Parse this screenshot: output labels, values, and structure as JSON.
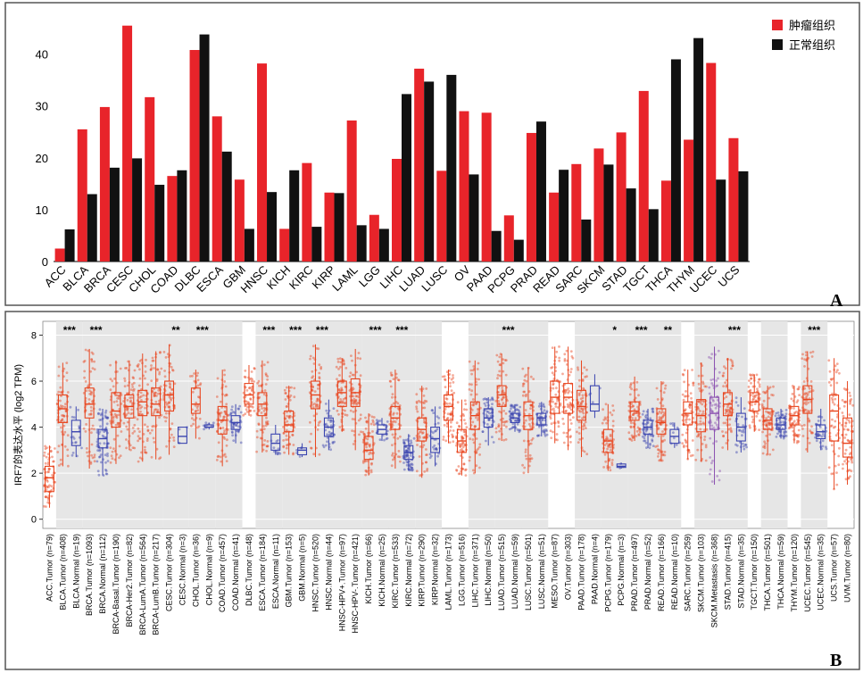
{
  "panels": {
    "a_letter": "A",
    "b_letter": "B"
  },
  "colors": {
    "tumor": "#e8242a",
    "normal": "#111111",
    "box_tumor": "#e8451e",
    "box_normal": "#3b45b0",
    "box_metastasis": "#8a4fb0",
    "panel_bg_stripe": "#e6e6e6",
    "frame": "#555555",
    "significance": "#000000"
  },
  "chart_data": [
    {
      "type": "bar",
      "legend_position": "top-right",
      "categories": [
        "ACC",
        "BLCA",
        "BRCA",
        "CESC",
        "CHOL",
        "COAD",
        "DLBC",
        "ESCA",
        "GBM",
        "HNSC",
        "KICH",
        "KIRC",
        "KIRP",
        "LAML",
        "LGG",
        "LIHC",
        "LUAD",
        "LUSC",
        "OV",
        "PAAD",
        "PCPG",
        "PRAD",
        "READ",
        "SARC",
        "SKCM",
        "STAD",
        "TGCT",
        "THCA",
        "THYM",
        "UCEC",
        "UCS"
      ],
      "series": [
        {
          "name": "肿瘤组织",
          "values": [
            2.5,
            25.5,
            29.8,
            45.5,
            31.7,
            16.5,
            40.8,
            28,
            15.8,
            38.2,
            6.3,
            19,
            13.3,
            27.2,
            9,
            19.8,
            37.2,
            17.5,
            29,
            28.7,
            8.9,
            24.8,
            13.3,
            18.8,
            21.8,
            24.9,
            32.9,
            15.6,
            23.5,
            38.3,
            23.8
          ]
        },
        {
          "name": "正常组织",
          "values": [
            6.2,
            13,
            18.1,
            19.9,
            14.8,
            17.6,
            43.8,
            21.2,
            6.3,
            13.4,
            17.6,
            6.7,
            13.2,
            7,
            6.3,
            32.3,
            34.7,
            36,
            16.8,
            5.9,
            4.2,
            27,
            17.7,
            8.1,
            18.7,
            14.1,
            10.1,
            39,
            43.1,
            15.8,
            17.4
          ]
        }
      ],
      "yticks": [
        0,
        10,
        20,
        30,
        40
      ],
      "ylim": [
        0,
        47
      ],
      "grid": false
    },
    {
      "type": "box",
      "ylabel": "IRF7的表达水平 (log2 TPM)",
      "yticks": [
        0,
        2,
        4,
        6,
        8
      ],
      "ylim": [
        -0.4,
        8.6
      ],
      "grid": true,
      "groups": [
        {
          "label": "ACC.Tumor (n=79)",
          "kind": "tumor",
          "stats": [
            0.5,
            1.2,
            1.8,
            2.3,
            3.2
          ]
        },
        {
          "label": "BLCA.Tumor (n=408)",
          "kind": "tumor",
          "stats": [
            2.3,
            4.2,
            4.8,
            5.4,
            6.8
          ]
        },
        {
          "label": "BLCA.Normal (n=19)",
          "kind": "normal",
          "stats": [
            2.7,
            3.2,
            3.8,
            4.3,
            4.9
          ]
        },
        {
          "label": "BRCA.Tumor (n=1093)",
          "kind": "tumor",
          "stats": [
            2.2,
            4.4,
            5.0,
            5.7,
            7.4
          ]
        },
        {
          "label": "BRCA.Normal (n=112)",
          "kind": "normal",
          "stats": [
            1.9,
            3.1,
            3.5,
            3.9,
            4.8
          ]
        },
        {
          "label": "BRCA-Basal.Tumor (n=190)",
          "kind": "tumor",
          "stats": [
            2.4,
            4.0,
            4.7,
            5.5,
            6.9
          ]
        },
        {
          "label": "BRCA-Her2.Tumor (n=82)",
          "kind": "tumor",
          "stats": [
            3.0,
            4.4,
            4.9,
            5.4,
            6.9
          ]
        },
        {
          "label": "BRCA-LumA.Tumor (n=564)",
          "kind": "tumor",
          "stats": [
            2.5,
            4.5,
            5.1,
            5.6,
            7.2
          ]
        },
        {
          "label": "BRCA-LumB.Tumor (n=217)",
          "kind": "tumor",
          "stats": [
            2.6,
            4.5,
            5.0,
            5.7,
            7.3
          ]
        },
        {
          "label": "CESC.Tumor (n=304)",
          "kind": "tumor",
          "stats": [
            2.8,
            4.7,
            5.4,
            6.0,
            7.6
          ]
        },
        {
          "label": "CESC.Normal (n=3)",
          "kind": "normal",
          "stats": [
            3.3,
            3.3,
            3.6,
            4.0,
            4.0
          ]
        },
        {
          "label": "CHOL.Tumor (n=36)",
          "kind": "tumor",
          "stats": [
            3.5,
            4.6,
            5.0,
            5.7,
            6.5
          ]
        },
        {
          "label": "CHOL.Normal (n=9)",
          "kind": "normal",
          "stats": [
            3.9,
            4.0,
            4.0,
            4.1,
            4.2
          ]
        },
        {
          "label": "COAD.Tumor (n=457)",
          "kind": "tumor",
          "stats": [
            2.3,
            3.7,
            4.3,
            4.9,
            6.5
          ]
        },
        {
          "label": "COAD.Normal (n=41)",
          "kind": "normal",
          "stats": [
            3.3,
            3.9,
            4.2,
            4.5,
            5.0
          ]
        },
        {
          "label": "DLBC.Tumor (n=48)",
          "kind": "tumor",
          "stats": [
            4.5,
            5.0,
            5.4,
            5.9,
            6.7
          ]
        },
        {
          "label": "ESCA.Tumor (n=184)",
          "kind": "tumor",
          "stats": [
            2.9,
            4.5,
            5.0,
            5.5,
            6.9
          ]
        },
        {
          "label": "ESCA.Normal (n=11)",
          "kind": "normal",
          "stats": [
            2.8,
            3.0,
            3.3,
            3.7,
            4.1
          ]
        },
        {
          "label": "GBM.Tumor (n=153)",
          "kind": "tumor",
          "stats": [
            2.8,
            3.8,
            4.1,
            4.7,
            5.8
          ]
        },
        {
          "label": "GBM.Normal (n=5)",
          "kind": "normal",
          "stats": [
            2.7,
            2.8,
            3.0,
            3.1,
            3.3
          ]
        },
        {
          "label": "HNSC.Tumor (n=520)",
          "kind": "tumor",
          "stats": [
            2.7,
            4.8,
            5.4,
            6.0,
            7.6
          ]
        },
        {
          "label": "HNSC.Normal (n=44)",
          "kind": "normal",
          "stats": [
            3.0,
            3.6,
            4.0,
            4.4,
            5.2
          ]
        },
        {
          "label": "HNSC-HPV+.Tumor (n=97)",
          "kind": "tumor",
          "stats": [
            3.8,
            4.9,
            5.5,
            6.0,
            7.0
          ]
        },
        {
          "label": "HNSC-HPV-.Tumor (n=421)",
          "kind": "tumor",
          "stats": [
            3.0,
            4.9,
            5.5,
            6.1,
            7.4
          ]
        },
        {
          "label": "KICH.Tumor (n=66)",
          "kind": "tumor",
          "stats": [
            1.9,
            2.6,
            3.0,
            3.6,
            4.6
          ]
        },
        {
          "label": "KICH.Normal (n=25)",
          "kind": "normal",
          "stats": [
            3.4,
            3.7,
            3.9,
            4.1,
            4.4
          ]
        },
        {
          "label": "KIRC.Tumor (n=533)",
          "kind": "tumor",
          "stats": [
            2.2,
            3.9,
            4.4,
            4.9,
            6.5
          ]
        },
        {
          "label": "KIRC.Normal (n=72)",
          "kind": "normal",
          "stats": [
            2.1,
            2.6,
            2.9,
            3.2,
            3.7
          ]
        },
        {
          "label": "KIRP.Tumor (n=290)",
          "kind": "tumor",
          "stats": [
            1.8,
            3.4,
            3.9,
            4.4,
            5.8
          ]
        },
        {
          "label": "KIRP.Normal (n=32)",
          "kind": "normal",
          "stats": [
            2.3,
            2.9,
            3.5,
            4.0,
            4.9
          ]
        },
        {
          "label": "LAML.Tumor (n=173)",
          "kind": "tumor",
          "stats": [
            3.3,
            4.3,
            4.9,
            5.4,
            6.5
          ]
        },
        {
          "label": "LGG.Tumor (n=516)",
          "kind": "tumor",
          "stats": [
            1.9,
            2.9,
            3.4,
            3.9,
            5.2
          ]
        },
        {
          "label": "LIHC.Tumor (n=371)",
          "kind": "tumor",
          "stats": [
            2.0,
            3.9,
            4.5,
            5.1,
            6.9
          ]
        },
        {
          "label": "LIHC.Normal (n=50)",
          "kind": "normal",
          "stats": [
            3.2,
            4.0,
            4.4,
            4.8,
            5.3
          ]
        },
        {
          "label": "LUAD.Tumor (n=515)",
          "kind": "tumor",
          "stats": [
            3.4,
            4.9,
            5.4,
            5.8,
            7.2
          ]
        },
        {
          "label": "LUAD.Normal (n=59)",
          "kind": "normal",
          "stats": [
            3.8,
            4.2,
            4.4,
            4.6,
            5.0
          ]
        },
        {
          "label": "LUSC.Tumor (n=501)",
          "kind": "tumor",
          "stats": [
            2.0,
            3.9,
            4.5,
            5.1,
            6.6
          ]
        },
        {
          "label": "LUSC.Normal (n=51)",
          "kind": "normal",
          "stats": [
            3.6,
            4.1,
            4.4,
            4.6,
            5.1
          ]
        },
        {
          "label": "MESO.Tumor (n=87)",
          "kind": "tumor",
          "stats": [
            3.3,
            4.6,
            5.3,
            6.0,
            7.5
          ]
        },
        {
          "label": "OV.Tumor (n=303)",
          "kind": "tumor",
          "stats": [
            3.0,
            4.6,
            5.3,
            5.9,
            7.5
          ]
        },
        {
          "label": "PAAD.Tumor (n=178)",
          "kind": "tumor",
          "stats": [
            2.7,
            4.3,
            4.9,
            5.6,
            6.9
          ]
        },
        {
          "label": "PAAD.Normal (n=4)",
          "kind": "normal",
          "stats": [
            4.4,
            4.7,
            5.0,
            5.8,
            6.3
          ]
        },
        {
          "label": "PCPG.Tumor (n=179)",
          "kind": "tumor",
          "stats": [
            2.1,
            2.9,
            3.4,
            3.9,
            5.0
          ]
        },
        {
          "label": "PCPG.Normal (n=3)",
          "kind": "normal",
          "stats": [
            2.2,
            2.25,
            2.3,
            2.4,
            2.45
          ]
        },
        {
          "label": "PRAD.Tumor (n=497)",
          "kind": "tumor",
          "stats": [
            3.4,
            4.3,
            4.7,
            5.1,
            6.2
          ]
        },
        {
          "label": "PRAD.Normal (n=52)",
          "kind": "normal",
          "stats": [
            3.1,
            3.7,
            4.0,
            4.3,
            4.8
          ]
        },
        {
          "label": "READ.Tumor (n=166)",
          "kind": "tumor",
          "stats": [
            2.5,
            3.7,
            4.2,
            4.8,
            6.0
          ]
        },
        {
          "label": "READ.Normal (n=10)",
          "kind": "normal",
          "stats": [
            3.1,
            3.3,
            3.6,
            3.9,
            4.2
          ]
        },
        {
          "label": "SARC.Tumor (n=259)",
          "kind": "tumor",
          "stats": [
            2.6,
            4.1,
            4.6,
            5.1,
            6.5
          ]
        },
        {
          "label": "SKCM.Tumor (n=103)",
          "kind": "tumor",
          "stats": [
            2.5,
            3.8,
            4.5,
            5.2,
            6.8
          ]
        },
        {
          "label": "SKCM.Metastasis (n=368)",
          "kind": "metastasis",
          "stats": [
            1.5,
            3.9,
            4.6,
            5.3,
            7.5
          ]
        },
        {
          "label": "STAD.Tumor (n=415)",
          "kind": "tumor",
          "stats": [
            3.0,
            4.5,
            5.0,
            5.5,
            7.0
          ]
        },
        {
          "label": "STAD.Normal (n=35)",
          "kind": "normal",
          "stats": [
            2.9,
            3.4,
            4.0,
            4.6,
            5.3
          ]
        },
        {
          "label": "TGCT.Tumor (n=150)",
          "kind": "tumor",
          "stats": [
            3.8,
            4.7,
            5.1,
            5.5,
            6.3
          ]
        },
        {
          "label": "THCA.Tumor (n=501)",
          "kind": "tumor",
          "stats": [
            2.8,
            3.9,
            4.3,
            4.8,
            5.8
          ]
        },
        {
          "label": "THCA.Normal (n=59)",
          "kind": "normal",
          "stats": [
            3.5,
            3.9,
            4.1,
            4.4,
            4.8
          ]
        },
        {
          "label": "THYM.Tumor (n=120)",
          "kind": "tumor",
          "stats": [
            3.3,
            4.1,
            4.5,
            4.9,
            5.8
          ]
        },
        {
          "label": "UCEC.Tumor (n=545)",
          "kind": "tumor",
          "stats": [
            2.9,
            4.6,
            5.2,
            5.8,
            7.3
          ]
        },
        {
          "label": "UCEC.Normal (n=35)",
          "kind": "normal",
          "stats": [
            3.0,
            3.5,
            3.8,
            4.1,
            4.8
          ]
        },
        {
          "label": "UCS.Tumor (n=57)",
          "kind": "tumor",
          "stats": [
            1.3,
            3.4,
            4.7,
            5.4,
            7.0
          ]
        },
        {
          "label": "UVM.Tumor (n=80)",
          "kind": "tumor",
          "stats": [
            1.5,
            2.7,
            3.3,
            4.4,
            6.0
          ]
        }
      ],
      "significance": [
        {
          "label": "***",
          "group": "BLCA.Tumor (n=408)"
        },
        {
          "label": "***",
          "group": "BRCA.Tumor (n=1093)"
        },
        {
          "label": "**",
          "group": "CESC.Tumor (n=304)"
        },
        {
          "label": "***",
          "group": "CHOL.Tumor (n=36)"
        },
        {
          "label": "***",
          "group": "ESCA.Tumor (n=184)"
        },
        {
          "label": "***",
          "group": "GBM.Tumor (n=153)"
        },
        {
          "label": "***",
          "group": "HNSC.Tumor (n=520)"
        },
        {
          "label": "***",
          "group": "KICH.Tumor (n=66)"
        },
        {
          "label": "***",
          "group": "KIRC.Tumor (n=533)"
        },
        {
          "label": "***",
          "group": "LUAD.Tumor (n=515)"
        },
        {
          "label": "*",
          "group": "PCPG.Tumor (n=179)"
        },
        {
          "label": "***",
          "group": "PRAD.Tumor (n=497)"
        },
        {
          "label": "**",
          "group": "READ.Tumor (n=166)"
        },
        {
          "label": "***",
          "group": "STAD.Tumor (n=415)"
        },
        {
          "label": "***",
          "group": "UCEC.Tumor (n=545)"
        }
      ],
      "shaded_pairs": [
        "BLCA",
        "BRCA",
        "CESC",
        "CHOL",
        "COAD",
        "ESCA",
        "GBM",
        "HNSC",
        "KICH",
        "KIRC",
        "KIRP",
        "LIHC",
        "LUAD",
        "LUSC",
        "PAAD",
        "PCPG",
        "PRAD",
        "READ",
        "SKCM",
        "STAD",
        "THCA",
        "UCEC"
      ]
    }
  ]
}
